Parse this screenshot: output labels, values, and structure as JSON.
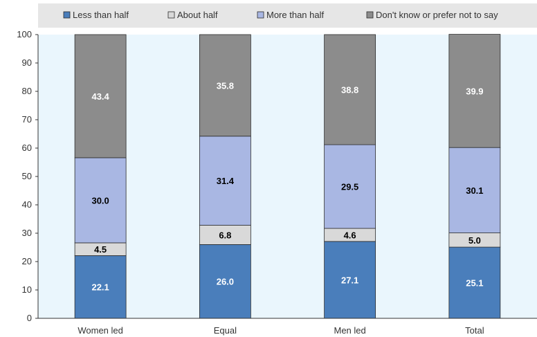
{
  "chart_data": {
    "type": "bar",
    "stacked": true,
    "categories": [
      "Women led",
      "Equal",
      "Men led",
      "Total"
    ],
    "series": [
      {
        "name": "Less than half",
        "values": [
          22.1,
          26.0,
          27.1,
          25.1
        ],
        "color": "#4a7ebb",
        "label_color": "#ffffff"
      },
      {
        "name": "About half",
        "values": [
          4.5,
          6.8,
          4.6,
          5.0
        ],
        "color": "#d9d9d9",
        "label_color": "#000000"
      },
      {
        "name": "More than half",
        "values": [
          30.0,
          31.4,
          29.5,
          30.1
        ],
        "color": "#a9b7e3",
        "label_color": "#000000"
      },
      {
        "name": "Don't know or prefer not to say",
        "values": [
          43.4,
          35.8,
          38.8,
          39.9
        ],
        "color": "#8c8c8c",
        "label_color": "#ffffff"
      }
    ],
    "value_labels": [
      [
        "22.1",
        "26.0",
        "27.1",
        "25.1"
      ],
      [
        "4.5",
        "6.8",
        "4.6",
        "5.0"
      ],
      [
        "30.0",
        "31.4",
        "29.5",
        "30.1"
      ],
      [
        "43.4",
        "35.8",
        "38.8",
        "39.9"
      ]
    ],
    "yticks": [
      "0",
      "10",
      "20",
      "30",
      "40",
      "50",
      "60",
      "70",
      "80",
      "90",
      "100"
    ],
    "ylim": [
      0,
      100
    ],
    "legend": "top",
    "grid": false,
    "plot_background": "#eaf6fd",
    "legend_background": "#e6e6e6"
  }
}
